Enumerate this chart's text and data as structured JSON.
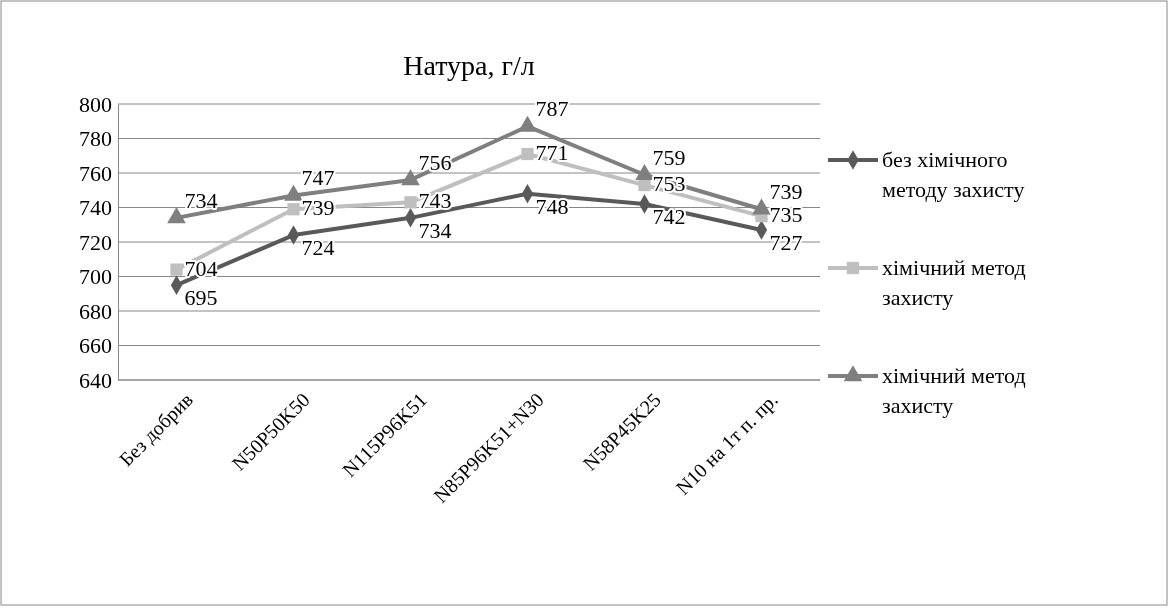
{
  "chart_data": {
    "type": "line",
    "title": "Натура, г/л",
    "categories": [
      "Без добрив",
      "N50P50K50",
      "N115P96K51",
      "N85P96K51+N30",
      "N58P45K25",
      "N10 на 1т п. пр."
    ],
    "series": [
      {
        "name": "без хімічного методу захисту",
        "color": "#595959",
        "marker": "diamond",
        "values": [
          695,
          724,
          734,
          748,
          742,
          727
        ]
      },
      {
        "name": "хімічний метод захисту",
        "color": "#bfbfbf",
        "marker": "square",
        "values": [
          704,
          739,
          743,
          771,
          753,
          735
        ]
      },
      {
        "name": "хімічний метод захисту",
        "color": "#7f7f7f",
        "marker": "triangle",
        "values": [
          734,
          747,
          756,
          787,
          759,
          739
        ]
      }
    ],
    "ylim": [
      640,
      800
    ],
    "yticks": [
      640,
      660,
      680,
      700,
      720,
      740,
      760,
      780,
      800
    ],
    "grid": "y",
    "legend": "right",
    "data_labels": true,
    "line_style": "solid"
  }
}
